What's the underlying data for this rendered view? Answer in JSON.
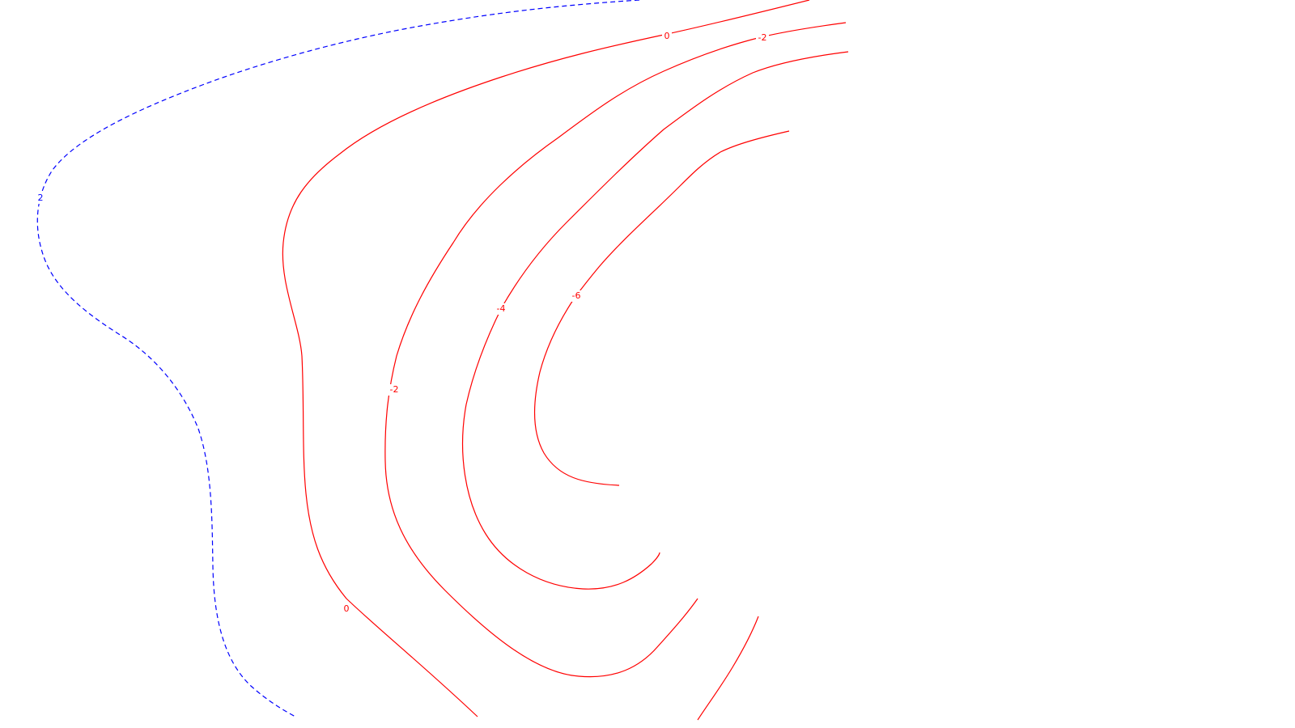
{
  "chart_data": {
    "type": "contour",
    "title": "",
    "xlabel": "",
    "ylabel": "",
    "grid": false,
    "legend": "none",
    "colors": {
      "positive": "#0000ff",
      "negative": "#ff0000",
      "background": "#ffffff"
    },
    "levels": [
      {
        "value": 2,
        "label": "2",
        "style": "dashed",
        "sign": "positive"
      },
      {
        "value": 0,
        "label": "0",
        "style": "solid",
        "sign": "negative",
        "segments": 1
      },
      {
        "value": -2,
        "label": "-2",
        "style": "solid",
        "sign": "negative",
        "segments": 2
      },
      {
        "value": -4,
        "label": "-4",
        "style": "solid",
        "sign": "negative",
        "segments": 1
      },
      {
        "value": -6,
        "label": "-6",
        "style": "solid",
        "sign": "negative",
        "segments": 2
      }
    ]
  }
}
